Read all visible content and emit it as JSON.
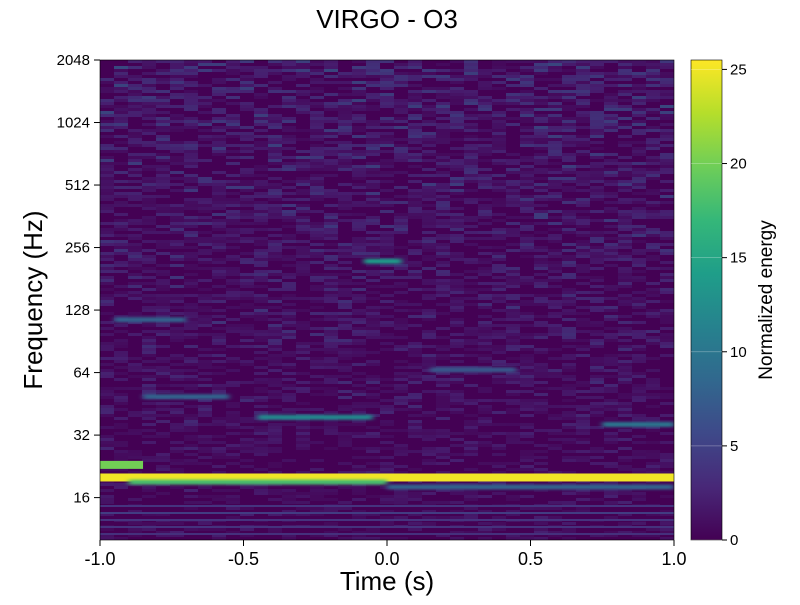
{
  "chart_data": {
    "type": "heatmap",
    "title": "VIRGO - O3",
    "xlabel": "Time (s)",
    "ylabel": "Frequency (Hz)",
    "xlim": [
      -1.0,
      1.0
    ],
    "ylim": [
      10,
      2048
    ],
    "yscale": "log2",
    "xticks": [
      -1.0,
      -0.5,
      0.0,
      0.5,
      1.0
    ],
    "xtick_labels": [
      "-1.0",
      "-0.5",
      "0.0",
      "0.5",
      "1.0"
    ],
    "yticks": [
      16,
      32,
      64,
      128,
      256,
      512,
      1024,
      2048
    ],
    "ytick_labels": [
      "16",
      "32",
      "64",
      "128",
      "256",
      "512",
      "1024",
      "2048"
    ],
    "colorbar": {
      "label": "Normalized energy",
      "range": [
        0,
        25.5
      ],
      "ticks": [
        0,
        5,
        10,
        15,
        20,
        25
      ],
      "tick_labels": [
        "0",
        "5",
        "10",
        "15",
        "20",
        "25"
      ],
      "colormap": "viridis",
      "colors": [
        "#440154",
        "#482878",
        "#3e4989",
        "#31688e",
        "#26828e",
        "#1f9e89",
        "#35b779",
        "#6ece58",
        "#b5de2b",
        "#fde725"
      ]
    },
    "features": [
      {
        "t_start": -1.0,
        "t_end": 1.0,
        "freq": 20,
        "energy": 25
      },
      {
        "t_start": -1.0,
        "t_end": -0.85,
        "freq": 23,
        "energy": 20
      },
      {
        "t_start": -0.9,
        "t_end": 0.0,
        "freq": 19,
        "energy": 18
      },
      {
        "t_start": 0.0,
        "t_end": 1.0,
        "freq": 18,
        "energy": 8
      },
      {
        "t_start": -0.45,
        "t_end": -0.05,
        "freq": 39,
        "energy": 12
      },
      {
        "t_start": 0.75,
        "t_end": 1.0,
        "freq": 36,
        "energy": 10
      },
      {
        "t_start": -0.85,
        "t_end": -0.55,
        "freq": 49,
        "energy": 8
      },
      {
        "t_start": 0.15,
        "t_end": 0.45,
        "freq": 66,
        "energy": 7
      },
      {
        "t_start": -0.95,
        "t_end": -0.7,
        "freq": 115,
        "energy": 8
      },
      {
        "t_start": -0.08,
        "t_end": 0.05,
        "freq": 220,
        "energy": 14
      }
    ]
  }
}
